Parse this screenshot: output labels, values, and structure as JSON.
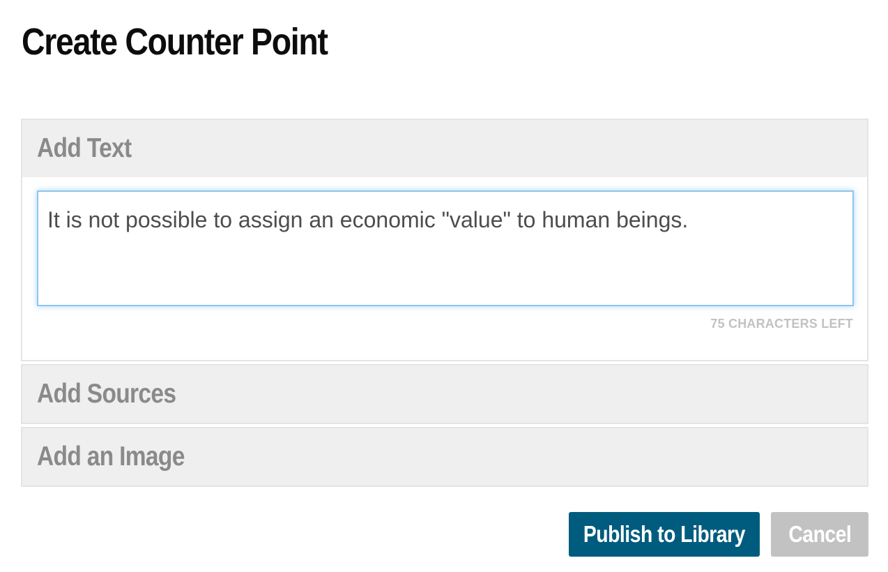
{
  "page": {
    "title": "Create Counter Point"
  },
  "sections": {
    "add_text": {
      "label": "Add Text",
      "input_value": "It is not possible to assign an economic \"value\" to human beings.",
      "char_counter": "75 CHARACTERS LEFT"
    },
    "add_sources": {
      "label": "Add Sources"
    },
    "add_image": {
      "label": "Add an Image"
    }
  },
  "actions": {
    "publish_label": "Publish to Library",
    "cancel_label": "Cancel"
  },
  "colors": {
    "publish_button": "#005c7e",
    "cancel_button": "#c2c2c2",
    "section_header_bg": "#efefef",
    "section_header_text": "#8a8a8a",
    "input_focus_border": "#8cc6f0"
  }
}
